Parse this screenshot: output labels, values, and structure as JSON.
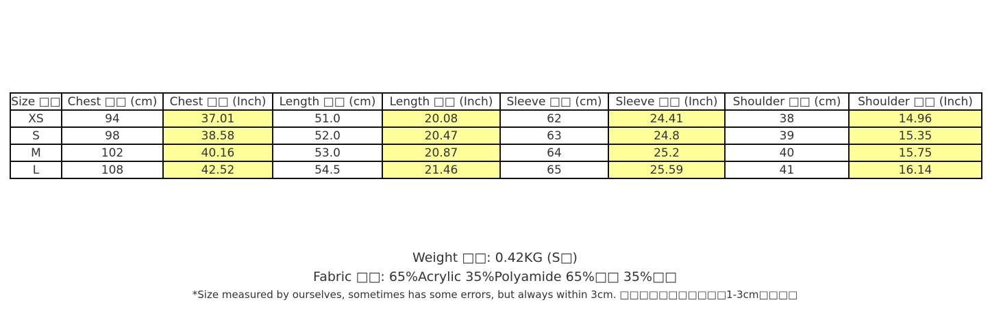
{
  "table": {
    "headers": [
      "Size □□",
      "Chest □□ (cm)",
      "Chest □□ (Inch)",
      "Length □□ (cm)",
      "Length □□ (Inch)",
      "Sleeve □□ (cm)",
      "Sleeve □□ (Inch)",
      "Shoulder □□ (cm)",
      "Shoulder □□ (Inch)"
    ],
    "highlight_color": "#ffff99",
    "highlighted_columns": [
      2,
      4,
      6,
      8
    ],
    "rows": [
      [
        "XS",
        "94",
        "37.01",
        "51.0",
        "20.08",
        "62",
        "24.41",
        "38",
        "14.96"
      ],
      [
        "S",
        "98",
        "38.58",
        "52.0",
        "20.47",
        "63",
        "24.8",
        "39",
        "15.35"
      ],
      [
        "M",
        "102",
        "40.16",
        "53.0",
        "20.87",
        "64",
        "25.2",
        "40",
        "15.75"
      ],
      [
        "L",
        "108",
        "42.52",
        "54.5",
        "21.46",
        "65",
        "25.59",
        "41",
        "16.14"
      ]
    ]
  },
  "weight": "Weight □□: 0.42KG (S□)",
  "fabric": "Fabric □□: 65%Acrylic 35%Polyamide 65%□□ 35%□□",
  "note": "*Size measured by ourselves, sometimes has some errors, but always within 3cm. □□□□□□□□□□□1-3cm□□□□"
}
